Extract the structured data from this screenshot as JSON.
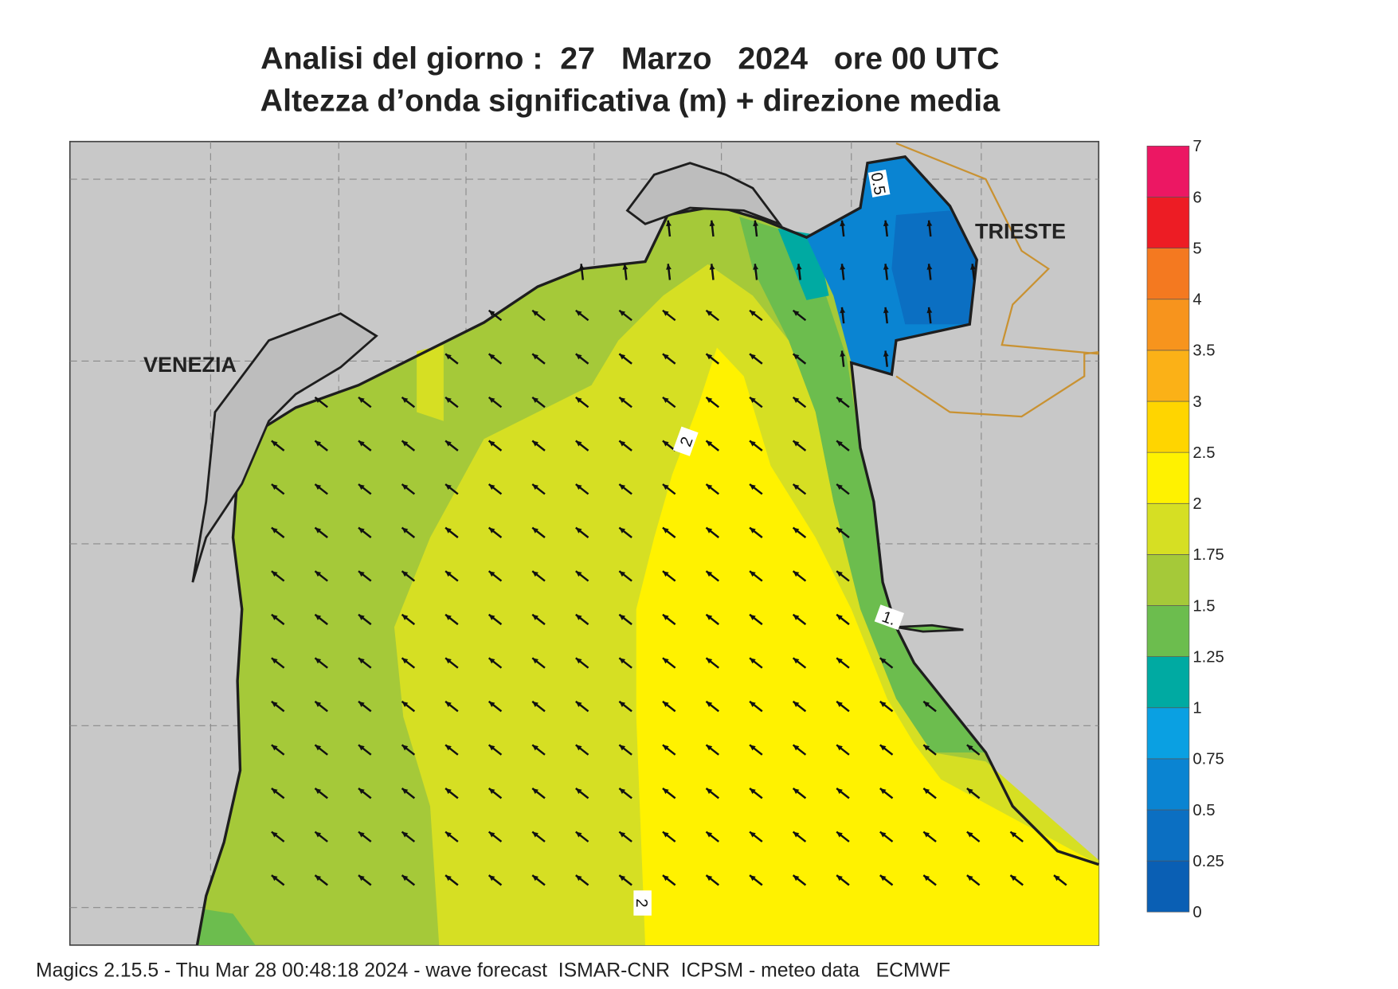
{
  "header": {
    "title": "Analisi del giorno :  27   Marzo   2024   ore 00 UTC",
    "subtitle": "Altezza d’onda significativa (m) + direzione media"
  },
  "map": {
    "place_labels": [
      "VENEZIA",
      "TRIESTE"
    ],
    "contour_labels": [
      "0.5",
      "1.",
      "2",
      "2"
    ]
  },
  "colorbar": {
    "levels": [
      0,
      0.25,
      0.5,
      0.75,
      1,
      1.25,
      1.5,
      1.75,
      2,
      2.5,
      3,
      3.5,
      4,
      5,
      6,
      7
    ],
    "colors": [
      "#0a5fb4",
      "#0b6fc2",
      "#0a84d2",
      "#0aa0e2",
      "#00aaa2",
      "#6cbd4e",
      "#a5c939",
      "#d6df23",
      "#fff200",
      "#ffd500",
      "#fbb117",
      "#f7941d",
      "#f47920",
      "#ed1c24",
      "#ec1763"
    ]
  },
  "footer": "Magics 2.15.5 - Thu Mar 28 00:48:18 2024 - wave forecast  ISMAR-CNR  ICPSM - meteo data   ECMWF"
}
